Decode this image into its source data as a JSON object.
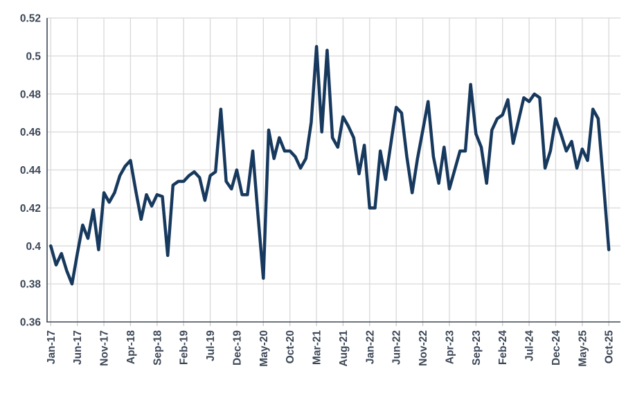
{
  "chart_data": {
    "type": "line",
    "title": "",
    "xlabel": "",
    "ylabel": "",
    "ylim": [
      0.36,
      0.52
    ],
    "ytick_step": 0.02,
    "y_tick_labels": [
      "0.36",
      "0.38",
      "0.4",
      "0.42",
      "0.44",
      "0.46",
      "0.48",
      "0.5",
      "0.52"
    ],
    "x_tick_every": 5,
    "grid": true,
    "legend": "none",
    "line_color": "#17395E",
    "grid_color": "#D8D8D8",
    "axis_color": "#3B4656",
    "tick_color": "#C9C9C9",
    "label_color": "#3B4656",
    "x": [
      "Jan-17",
      "Feb-17",
      "Mar-17",
      "Apr-17",
      "May-17",
      "Jun-17",
      "Jul-17",
      "Aug-17",
      "Sep-17",
      "Oct-17",
      "Nov-17",
      "Dec-17",
      "Jan-18",
      "Feb-18",
      "Mar-18",
      "Apr-18",
      "May-18",
      "Jun-18",
      "Jul-18",
      "Aug-18",
      "Sep-18",
      "Oct-18",
      "Nov-18",
      "Dec-18",
      "Jan-19",
      "Feb-19",
      "Mar-19",
      "Apr-19",
      "May-19",
      "Jun-19",
      "Jul-19",
      "Aug-19",
      "Sep-19",
      "Oct-19",
      "Nov-19",
      "Dec-19",
      "Jan-20",
      "Feb-20",
      "Mar-20",
      "Apr-20",
      "May-20",
      "Jun-20",
      "Jul-20",
      "Aug-20",
      "Sep-20",
      "Oct-20",
      "Nov-20",
      "Dec-20",
      "Jan-21",
      "Feb-21",
      "Mar-21",
      "Apr-21",
      "May-21",
      "Jun-21",
      "Jul-21",
      "Aug-21",
      "Sep-21",
      "Oct-21",
      "Nov-21",
      "Dec-21",
      "Jan-22",
      "Feb-22",
      "Mar-22",
      "Apr-22",
      "May-22",
      "Jun-22",
      "Jul-22",
      "Aug-22",
      "Sep-22",
      "Oct-22",
      "Nov-22",
      "Dec-22",
      "Jan-23",
      "Feb-23",
      "Mar-23",
      "Apr-23",
      "May-23",
      "Jun-23",
      "Jul-23",
      "Aug-23",
      "Sep-23",
      "Oct-23",
      "Nov-23",
      "Dec-23",
      "Jan-24",
      "Feb-24",
      "Mar-24",
      "Apr-24",
      "May-24",
      "Jun-24",
      "Jul-24",
      "Aug-24",
      "Sep-24",
      "Oct-24",
      "Nov-24",
      "Dec-24",
      "Jan-25",
      "Feb-25",
      "Mar-25",
      "Apr-25",
      "May-25",
      "Jun-25",
      "Jul-25",
      "Aug-25",
      "Sep-25",
      "Oct-25"
    ],
    "values": [
      0.4,
      0.39,
      0.396,
      0.387,
      0.38,
      0.396,
      0.411,
      0.404,
      0.419,
      0.398,
      0.428,
      0.423,
      0.428,
      0.437,
      0.442,
      0.445,
      0.429,
      0.414,
      0.427,
      0.421,
      0.427,
      0.426,
      0.395,
      0.432,
      0.434,
      0.434,
      0.437,
      0.439,
      0.436,
      0.424,
      0.437,
      0.439,
      0.472,
      0.434,
      0.43,
      0.44,
      0.427,
      0.427,
      0.45,
      0.416,
      0.383,
      0.461,
      0.446,
      0.457,
      0.45,
      0.45,
      0.447,
      0.441,
      0.446,
      0.465,
      0.505,
      0.46,
      0.503,
      0.457,
      0.452,
      0.468,
      0.463,
      0.457,
      0.438,
      0.453,
      0.42,
      0.42,
      0.45,
      0.435,
      0.454,
      0.473,
      0.47,
      0.447,
      0.428,
      0.446,
      0.461,
      0.476,
      0.447,
      0.433,
      0.452,
      0.43,
      0.44,
      0.45,
      0.45,
      0.485,
      0.459,
      0.452,
      0.433,
      0.461,
      0.467,
      0.469,
      0.477,
      0.454,
      0.466,
      0.478,
      0.476,
      0.48,
      0.478,
      0.441,
      0.45,
      0.467,
      0.459,
      0.45,
      0.455,
      0.441,
      0.451,
      0.445,
      0.472,
      0.467,
      0.433,
      0.398
    ]
  }
}
